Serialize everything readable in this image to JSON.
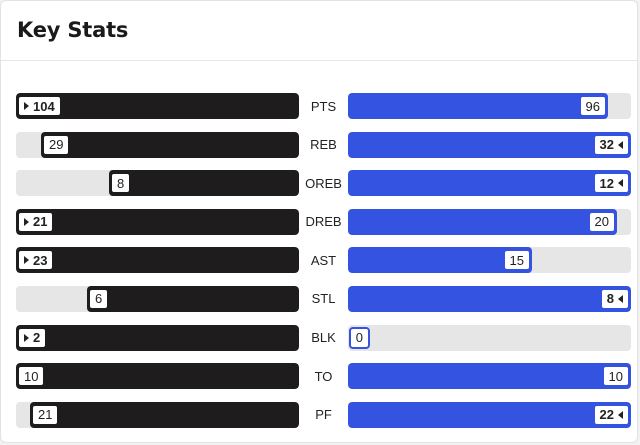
{
  "header": {
    "title": "Key Stats"
  },
  "colors": {
    "left_team": "#1f1c1d",
    "right_team": "#3353e0",
    "track": "#e6e6e6"
  },
  "stats": [
    {
      "label": "PTS",
      "left": 104,
      "right": 96,
      "left_fill": 1.0,
      "right_fill": 0.92,
      "leader": "left"
    },
    {
      "label": "REB",
      "left": 29,
      "right": 32,
      "left_fill": 0.91,
      "right_fill": 1.0,
      "leader": "right"
    },
    {
      "label": "OREB",
      "left": 8,
      "right": 12,
      "left_fill": 0.67,
      "right_fill": 1.0,
      "leader": "right"
    },
    {
      "label": "DREB",
      "left": 21,
      "right": 20,
      "left_fill": 1.0,
      "right_fill": 0.95,
      "leader": "left"
    },
    {
      "label": "AST",
      "left": 23,
      "right": 15,
      "left_fill": 1.0,
      "right_fill": 0.65,
      "leader": "left"
    },
    {
      "label": "STL",
      "left": 6,
      "right": 8,
      "left_fill": 0.75,
      "right_fill": 1.0,
      "leader": "right"
    },
    {
      "label": "BLK",
      "left": 2,
      "right": 0,
      "left_fill": 1.0,
      "right_fill": 0.0,
      "leader": "left"
    },
    {
      "label": "TO",
      "left": 10,
      "right": 10,
      "left_fill": 1.0,
      "right_fill": 1.0,
      "leader": "none"
    },
    {
      "label": "PF",
      "left": 21,
      "right": 22,
      "left_fill": 0.95,
      "right_fill": 1.0,
      "leader": "right"
    }
  ]
}
